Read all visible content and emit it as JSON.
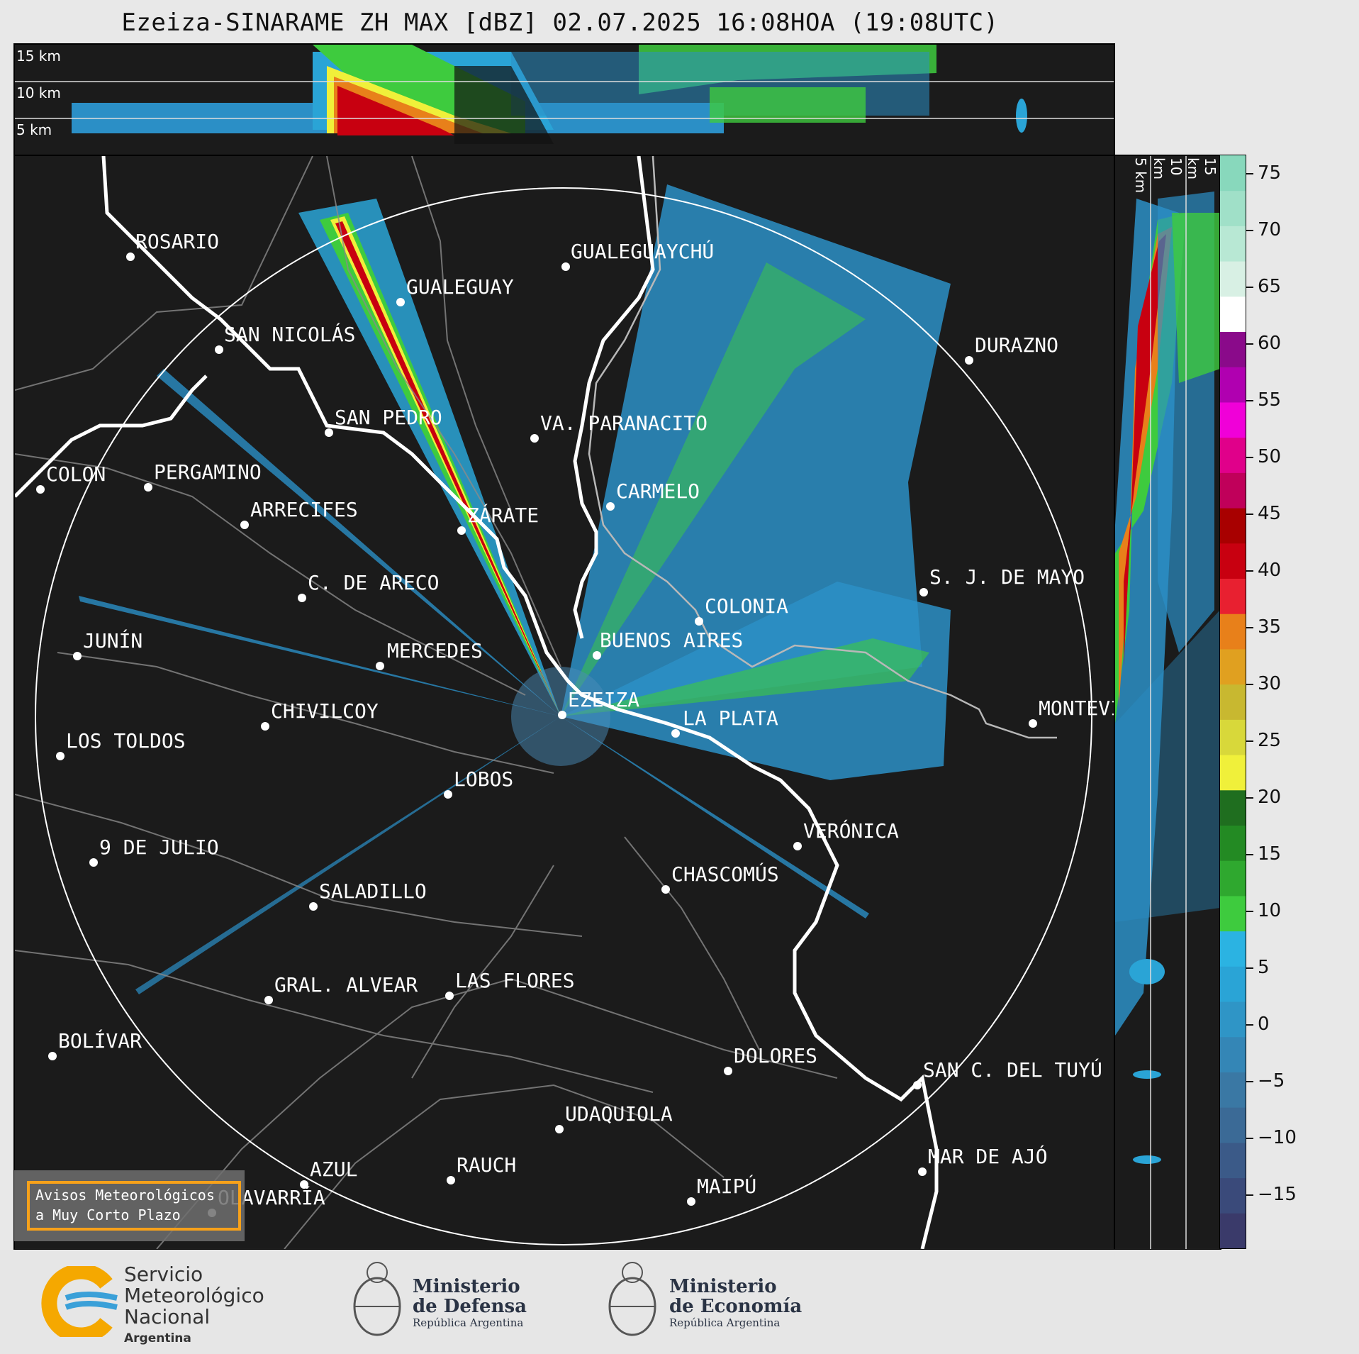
{
  "title": "Ezeiza-SINARAME ZH MAX [dBZ] 02.07.2025 16:08HOA (19:08UTC)",
  "top_strip": {
    "alt_labels": [
      "15 km",
      "10 km",
      "5 km"
    ]
  },
  "side_strip": {
    "alt_labels": [
      "5 km",
      "10 km",
      "15 km"
    ]
  },
  "colorbar": {
    "ticks": [
      "75",
      "70",
      "65",
      "60",
      "55",
      "50",
      "45",
      "40",
      "35",
      "30",
      "25",
      "20",
      "15",
      "10",
      "5",
      "0",
      "−5",
      "−10",
      "−15"
    ],
    "colors": [
      "#3a3a6a",
      "#3a4a7a",
      "#3b5a88",
      "#3b6a96",
      "#3a78a4",
      "#3486b6",
      "#2f95c6",
      "#2aa4d6",
      "#2bb3e2",
      "#3ecb3e",
      "#2fa82f",
      "#238a23",
      "#1f6e1f",
      "#f0f03a",
      "#d8d83a",
      "#c8b830",
      "#e0a020",
      "#e8801a",
      "#e82030",
      "#c80010",
      "#a80000",
      "#c0005a",
      "#e0008a",
      "#f000d8",
      "#b000b0",
      "#8a0a8a",
      "#ffffff",
      "#d8f0e4",
      "#b8e8d4",
      "#a0e0c8",
      "#88d8bc"
    ]
  },
  "cities": [
    {
      "name": "ROSARIO"
    },
    {
      "name": "GUALEGUAYCHÚ"
    },
    {
      "name": "GUALEGUAY"
    },
    {
      "name": "SAN NICOLÁS"
    },
    {
      "name": "DURAZNO"
    },
    {
      "name": "SAN PEDRO"
    },
    {
      "name": "VA. PARANACITO"
    },
    {
      "name": "COLON"
    },
    {
      "name": "PERGAMINO"
    },
    {
      "name": "CARMELO"
    },
    {
      "name": "ARRECIFES"
    },
    {
      "name": "ZÁRATE"
    },
    {
      "name": "C. DE ARECO"
    },
    {
      "name": "S. J. DE MAYO"
    },
    {
      "name": "COLONIA"
    },
    {
      "name": "JUNÍN"
    },
    {
      "name": "BUENOS AIRES"
    },
    {
      "name": "MERCEDES"
    },
    {
      "name": "EZEIZA"
    },
    {
      "name": "MONTEVIDEO"
    },
    {
      "name": "CHIVILCOY"
    },
    {
      "name": "LA PLATA"
    },
    {
      "name": "LOS TOLDOS"
    },
    {
      "name": "LOBOS"
    },
    {
      "name": "VERÓNICA"
    },
    {
      "name": "9 DE JULIO"
    },
    {
      "name": "CHASCOMÚS"
    },
    {
      "name": "SALADILLO"
    },
    {
      "name": "GRAL. ALVEAR"
    },
    {
      "name": "LAS FLORES"
    },
    {
      "name": "BOLÍVAR"
    },
    {
      "name": "DOLORES"
    },
    {
      "name": "SAN C. DEL TUYÚ"
    },
    {
      "name": "UDAQUIOLA"
    },
    {
      "name": "MAR DE AJÓ"
    },
    {
      "name": "AZUL"
    },
    {
      "name": "RAUCH"
    },
    {
      "name": "OLAVARRÍA"
    },
    {
      "name": "MAIPÚ"
    }
  ],
  "avisos": {
    "line1": "Avisos Meteorológicos",
    "line2": "a Muy Corto Plazo"
  },
  "logos": {
    "smn": {
      "line1": "Servicio",
      "line2": "Meteorológico",
      "line3": "Nacional",
      "line4": "Argentina"
    },
    "defensa": {
      "line1": "Ministerio",
      "line2": "de Defensa",
      "line3": "República Argentina"
    },
    "economia": {
      "line1": "Ministerio",
      "line2": "de Economía",
      "line3": "República Argentina"
    }
  }
}
